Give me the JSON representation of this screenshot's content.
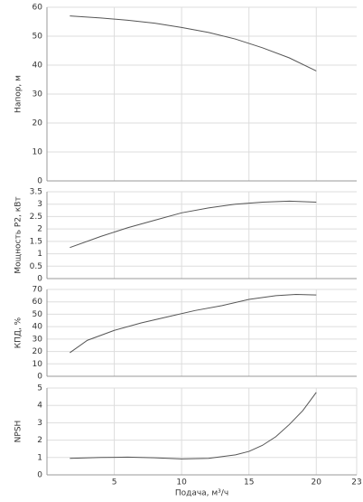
{
  "chart_data": [
    {
      "type": "line",
      "ylabel": "Напор, м",
      "xlim": [
        0,
        23
      ],
      "xticks": [
        5,
        10,
        15,
        20
      ],
      "ylim": [
        0,
        60
      ],
      "yticks": [
        0,
        10,
        20,
        30,
        40,
        50,
        60
      ],
      "grid": true,
      "x": [
        1.7,
        4,
        6,
        8,
        10,
        12,
        14,
        16,
        18,
        20
      ],
      "series": [
        {
          "color": "#555555",
          "values": [
            57,
            56.3,
            55.5,
            54.5,
            53,
            51.3,
            49,
            46,
            42.5,
            38
          ]
        }
      ]
    },
    {
      "type": "line",
      "ylabel": "Мощность P2, кВт",
      "xlim": [
        0,
        23
      ],
      "xticks": [
        5,
        10,
        15,
        20
      ],
      "ylim": [
        0,
        3.5
      ],
      "yticks": [
        0,
        0.5,
        1,
        1.5,
        2,
        2.5,
        3,
        3.5
      ],
      "grid": true,
      "x": [
        1.7,
        4,
        6,
        8,
        10,
        12,
        14,
        16,
        18,
        20
      ],
      "series": [
        {
          "color": "#555555",
          "values": [
            1.25,
            1.7,
            2.05,
            2.35,
            2.65,
            2.85,
            3.0,
            3.08,
            3.12,
            3.08
          ]
        }
      ]
    },
    {
      "type": "line",
      "ylabel": "КПД, %",
      "xlim": [
        0,
        23
      ],
      "xticks": [
        5,
        10,
        15,
        20
      ],
      "ylim": [
        0,
        70
      ],
      "yticks": [
        0,
        10,
        20,
        30,
        40,
        50,
        60,
        70
      ],
      "grid": true,
      "x": [
        1.7,
        3,
        5,
        7,
        9,
        11,
        13,
        15,
        17,
        18.5,
        20
      ],
      "series": [
        {
          "color": "#555555",
          "values": [
            19,
            29,
            37,
            43,
            48,
            53,
            57,
            62,
            65,
            66,
            65.5
          ]
        }
      ]
    },
    {
      "type": "line",
      "ylabel": "NPSH",
      "xlabel": "Подача, м³/ч",
      "xlim": [
        0,
        23
      ],
      "xticks": [
        5,
        10,
        15,
        20,
        23
      ],
      "ylim": [
        0,
        5
      ],
      "yticks": [
        0,
        1,
        2,
        3,
        4,
        5
      ],
      "grid": true,
      "x": [
        1.7,
        4,
        6,
        8,
        10,
        12,
        14,
        15,
        16,
        17,
        18,
        19,
        20
      ],
      "series": [
        {
          "color": "#555555",
          "values": [
            0.95,
            1.0,
            1.02,
            0.98,
            0.92,
            0.95,
            1.15,
            1.35,
            1.7,
            2.2,
            2.9,
            3.7,
            4.75
          ]
        }
      ]
    }
  ]
}
